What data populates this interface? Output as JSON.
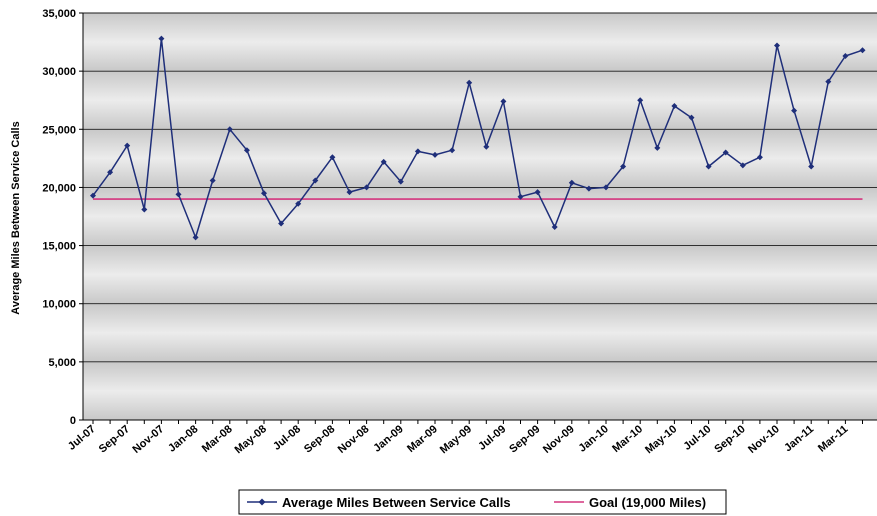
{
  "chart_data": {
    "type": "line",
    "title": "",
    "xlabel": "",
    "ylabel": "Average Miles Between Service Calls",
    "ylim": [
      0,
      35000
    ],
    "yticks": [
      0,
      5000,
      10000,
      15000,
      20000,
      25000,
      30000,
      35000
    ],
    "ytick_labels": [
      "0",
      "5,000",
      "10,000",
      "15,000",
      "20,000",
      "25,000",
      "30,000",
      "35,000"
    ],
    "grid": true,
    "legend_position": "bottom-center",
    "categories": [
      "Jul-07",
      "Aug-07",
      "Sep-07",
      "Oct-07",
      "Nov-07",
      "Dec-07",
      "Jan-08",
      "Feb-08",
      "Mar-08",
      "Apr-08",
      "May-08",
      "Jun-08",
      "Jul-08",
      "Aug-08",
      "Sep-08",
      "Oct-08",
      "Nov-08",
      "Dec-08",
      "Jan-09",
      "Feb-09",
      "Mar-09",
      "Apr-09",
      "May-09",
      "Jun-09",
      "Jul-09",
      "Aug-09",
      "Sep-09",
      "Oct-09",
      "Nov-09",
      "Dec-09",
      "Jan-10",
      "Feb-10",
      "Mar-10",
      "Apr-10",
      "May-10",
      "Jun-10",
      "Jul-10",
      "Aug-10",
      "Sep-10",
      "Oct-10",
      "Nov-10",
      "Dec-10",
      "Jan-11",
      "Feb-11",
      "Mar-11",
      "Apr-11"
    ],
    "xtick_labels": [
      "Jul-07",
      "Sep-07",
      "Nov-07",
      "Jan-08",
      "Mar-08",
      "May-08",
      "Jul-08",
      "Sep-08",
      "Nov-08",
      "Jan-09",
      "Mar-09",
      "May-09",
      "Jul-09",
      "Sep-09",
      "Nov-09",
      "Jan-10",
      "Mar-10",
      "May-10",
      "Jul-10",
      "Sep-10",
      "Nov-10",
      "Jan-11",
      "Mar-11"
    ],
    "series": [
      {
        "name": "Average Miles Between Service Calls",
        "color": "#1f2f7a",
        "marker": "diamond",
        "values": [
          19300,
          21300,
          23600,
          18100,
          32800,
          19400,
          15700,
          20600,
          25000,
          23200,
          19500,
          16900,
          18600,
          20600,
          22600,
          19600,
          20000,
          22200,
          20500,
          23100,
          22800,
          23200,
          29000,
          23500,
          27400,
          19200,
          19600,
          16600,
          20400,
          19900,
          20000,
          21800,
          27500,
          23400,
          27000,
          26000,
          21800,
          23000,
          21900,
          22600,
          32200,
          26600,
          21800,
          29100,
          31300,
          31800
        ]
      },
      {
        "name": "Goal (19,000 Miles)",
        "color": "#d4357e",
        "marker": "none",
        "values": [
          19000,
          19000,
          19000,
          19000,
          19000,
          19000,
          19000,
          19000,
          19000,
          19000,
          19000,
          19000,
          19000,
          19000,
          19000,
          19000,
          19000,
          19000,
          19000,
          19000,
          19000,
          19000,
          19000,
          19000,
          19000,
          19000,
          19000,
          19000,
          19000,
          19000,
          19000,
          19000,
          19000,
          19000,
          19000,
          19000,
          19000,
          19000,
          19000,
          19000,
          19000,
          19000,
          19000,
          19000,
          19000,
          19000
        ]
      }
    ]
  }
}
